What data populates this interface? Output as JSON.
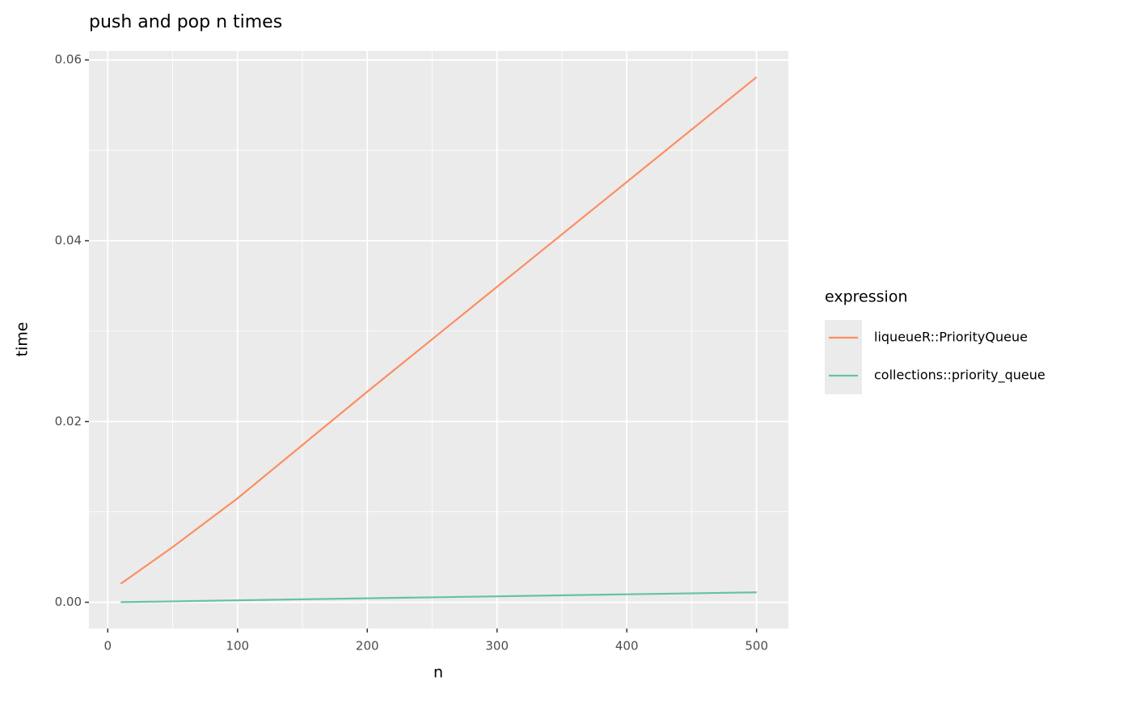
{
  "chart_data": {
    "type": "line",
    "title": "push and pop n times",
    "x_label": "n",
    "y_label": "time",
    "x": [
      10,
      50,
      100,
      200,
      300,
      400,
      500
    ],
    "series": [
      {
        "name": "liqueueR::PriorityQueue",
        "color": "#fc8d62",
        "values": [
          0.00205,
          0.0061,
          0.0115,
          0.0233,
          0.0349,
          0.0465,
          0.0581
        ]
      },
      {
        "name": "collections::priority_queue",
        "color": "#66c2a5",
        "values": [
          2e-05,
          0.0001,
          0.00022,
          0.00044,
          0.00066,
          0.00088,
          0.0011
        ]
      }
    ],
    "xlim": [
      -14.5,
      524.5
    ],
    "xticks": [
      0,
      100,
      200,
      300,
      400,
      500
    ],
    "ylim": [
      -0.0029,
      0.061
    ],
    "yticks": [
      {
        "value": 0,
        "label": "0.00"
      },
      {
        "value": 0.02,
        "label": "0.02"
      },
      {
        "value": 0.04,
        "label": "0.04"
      },
      {
        "value": 0.06,
        "label": "0.06"
      }
    ],
    "grid": true,
    "legend_title": "expression",
    "legend_position": "right"
  }
}
